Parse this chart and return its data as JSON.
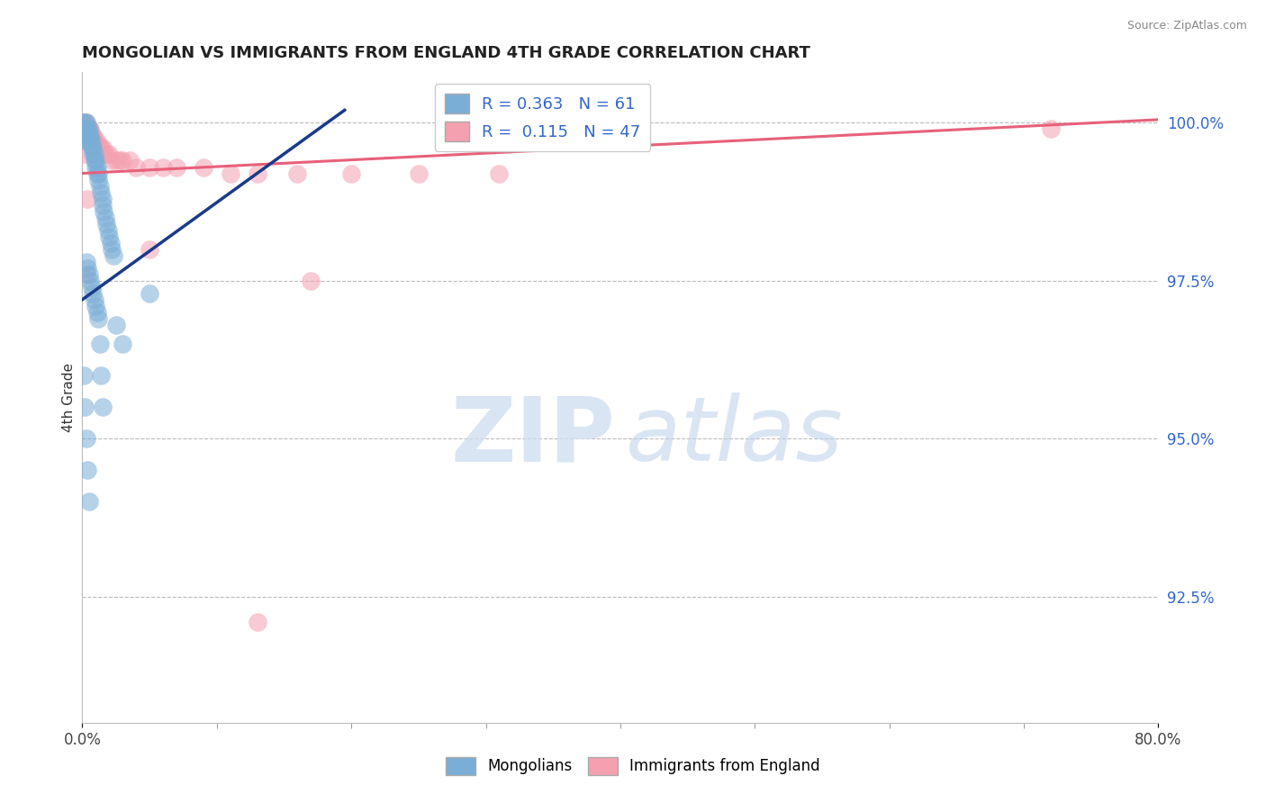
{
  "title": "MONGOLIAN VS IMMIGRANTS FROM ENGLAND 4TH GRADE CORRELATION CHART",
  "source_text": "Source: ZipAtlas.com",
  "ylabel": "4th Grade",
  "watermark_zip": "ZIP",
  "watermark_atlas": "atlas",
  "xlim": [
    0.0,
    0.8
  ],
  "ylim": [
    0.905,
    1.008
  ],
  "xtick_vals": [
    0.0,
    0.8
  ],
  "xtick_labels": [
    "0.0%",
    "80.0%"
  ],
  "ytick_vals": [
    0.925,
    0.95,
    0.975,
    1.0
  ],
  "ytick_labels": [
    "92.5%",
    "95.0%",
    "97.5%",
    "100.0%"
  ],
  "legend_R1": "0.363",
  "legend_N1": "61",
  "legend_R2": "0.115",
  "legend_N2": "47",
  "color_mongolian": "#7aaed6",
  "color_england": "#f4a0b0",
  "color_trend_mongolian": "#1a3a8a",
  "color_trend_england": "#e8607a",
  "mong_trend_x0": 0.0,
  "mong_trend_y0": 0.972,
  "mong_trend_x1": 0.195,
  "mong_trend_y1": 1.002,
  "eng_trend_x0": 0.0,
  "eng_trend_y0": 0.992,
  "eng_trend_x1": 0.8,
  "eng_trend_y1": 1.0005,
  "mongolian_x": [
    0.001,
    0.001,
    0.002,
    0.002,
    0.002,
    0.003,
    0.003,
    0.003,
    0.004,
    0.004,
    0.004,
    0.005,
    0.005,
    0.005,
    0.006,
    0.006,
    0.007,
    0.007,
    0.008,
    0.008,
    0.009,
    0.009,
    0.01,
    0.01,
    0.011,
    0.011,
    0.012,
    0.012,
    0.013,
    0.014,
    0.015,
    0.015,
    0.016,
    0.017,
    0.018,
    0.019,
    0.02,
    0.021,
    0.022,
    0.023,
    0.003,
    0.004,
    0.005,
    0.006,
    0.007,
    0.008,
    0.009,
    0.01,
    0.011,
    0.012,
    0.001,
    0.002,
    0.003,
    0.004,
    0.005,
    0.013,
    0.014,
    0.015,
    0.05,
    0.025,
    0.03
  ],
  "mongolian_y": [
    1.0,
    0.999,
    0.999,
    0.998,
    1.0,
    0.999,
    0.998,
    1.0,
    0.999,
    0.998,
    0.997,
    0.999,
    0.998,
    0.997,
    0.998,
    0.997,
    0.997,
    0.996,
    0.996,
    0.995,
    0.995,
    0.994,
    0.994,
    0.993,
    0.993,
    0.992,
    0.992,
    0.991,
    0.99,
    0.989,
    0.988,
    0.987,
    0.986,
    0.985,
    0.984,
    0.983,
    0.982,
    0.981,
    0.98,
    0.979,
    0.978,
    0.977,
    0.976,
    0.975,
    0.974,
    0.973,
    0.972,
    0.971,
    0.97,
    0.969,
    0.96,
    0.955,
    0.95,
    0.945,
    0.94,
    0.965,
    0.96,
    0.955,
    0.973,
    0.968,
    0.965
  ],
  "england_x": [
    0.001,
    0.001,
    0.002,
    0.002,
    0.003,
    0.003,
    0.004,
    0.004,
    0.005,
    0.005,
    0.006,
    0.006,
    0.007,
    0.008,
    0.009,
    0.01,
    0.011,
    0.012,
    0.013,
    0.014,
    0.015,
    0.016,
    0.018,
    0.02,
    0.022,
    0.025,
    0.028,
    0.03,
    0.035,
    0.04,
    0.05,
    0.06,
    0.07,
    0.09,
    0.11,
    0.13,
    0.16,
    0.2,
    0.25,
    0.31,
    0.002,
    0.003,
    0.004,
    0.17,
    0.72,
    0.13,
    0.05
  ],
  "england_y": [
    1.0,
    0.999,
    1.0,
    0.999,
    1.0,
    0.999,
    0.999,
    0.998,
    0.999,
    0.998,
    0.999,
    0.998,
    0.998,
    0.998,
    0.997,
    0.997,
    0.997,
    0.996,
    0.996,
    0.996,
    0.996,
    0.995,
    0.995,
    0.995,
    0.994,
    0.994,
    0.994,
    0.994,
    0.994,
    0.993,
    0.993,
    0.993,
    0.993,
    0.993,
    0.992,
    0.992,
    0.992,
    0.992,
    0.992,
    0.992,
    0.995,
    0.976,
    0.988,
    0.975,
    0.999,
    0.921,
    0.98
  ]
}
